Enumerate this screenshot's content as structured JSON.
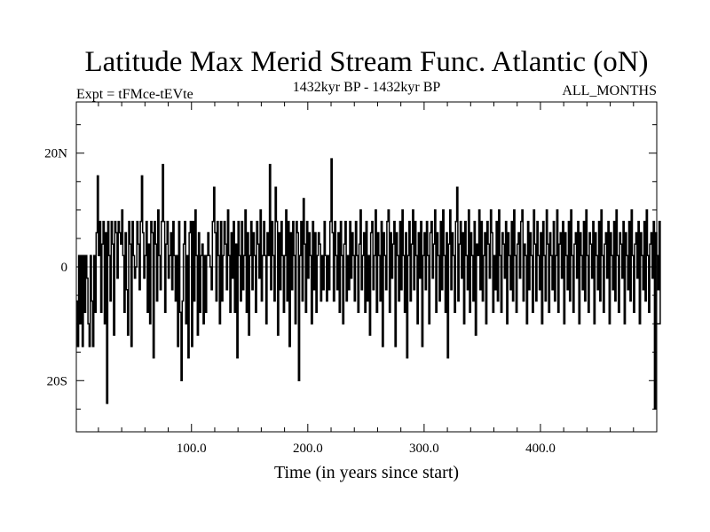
{
  "chart_data": {
    "type": "line",
    "title": "Latitude Max Merid Stream Func. Atlantic (oN)",
    "subtitle_left": "Expt = tFMce-tEVte",
    "subtitle_center": "1432kyr BP - 1432kyr BP",
    "subtitle_right": "ALL_MONTHS",
    "xlabel": "Time (in years since start)",
    "ylabel": "",
    "xlim": [
      1,
      500
    ],
    "ylim": [
      -29,
      29
    ],
    "x_ticks": [
      100,
      200,
      300,
      400
    ],
    "x_tick_labels": [
      "100.0",
      "200.0",
      "300.0",
      "400.0"
    ],
    "y_ticks": [
      -20,
      0,
      20
    ],
    "y_tick_labels": [
      "20S",
      "0",
      "20N"
    ],
    "zero_line": true,
    "grid": false,
    "series": [
      {
        "x_start": 1,
        "x_step": 1,
        "values": [
          -6,
          -14,
          2,
          -10,
          2,
          -14,
          2,
          -8,
          2,
          -2,
          -10,
          -14,
          2,
          -6,
          -14,
          2,
          -8,
          6,
          16,
          2,
          8,
          -8,
          4,
          8,
          -10,
          6,
          -24,
          8,
          2,
          -6,
          8,
          4,
          -12,
          8,
          6,
          -2,
          8,
          6,
          4,
          10,
          2,
          -8,
          6,
          -4,
          -12,
          8,
          4,
          -14,
          8,
          2,
          -2,
          0,
          8,
          4,
          -4,
          8,
          16,
          6,
          -2,
          2,
          8,
          -8,
          4,
          -10,
          8,
          6,
          -16,
          8,
          4,
          -6,
          10,
          2,
          -4,
          8,
          18,
          8,
          -8,
          4,
          8,
          -2,
          2,
          6,
          -4,
          8,
          2,
          -6,
          2,
          -14,
          8,
          -8,
          -20,
          -6,
          4,
          8,
          -10,
          2,
          -16,
          6,
          8,
          -14,
          8,
          -6,
          10,
          2,
          -12,
          6,
          -8,
          2,
          4,
          -10,
          2,
          -8,
          2,
          6,
          2,
          0,
          -4,
          8,
          14,
          6,
          -6,
          8,
          2,
          -10,
          8,
          -6,
          2,
          8,
          4,
          -4,
          10,
          2,
          -8,
          6,
          -2,
          8,
          -8,
          4,
          -16,
          8,
          2,
          -6,
          8,
          -4,
          2,
          10,
          -8,
          6,
          -12,
          2,
          8,
          -4,
          6,
          2,
          -8,
          8,
          4,
          -2,
          10,
          -6,
          2,
          8,
          2,
          -10,
          6,
          2,
          18,
          -4,
          8,
          2,
          -6,
          14,
          8,
          -12,
          6,
          -4,
          8,
          2,
          -8,
          2,
          10,
          -6,
          8,
          -14,
          6,
          -4,
          8,
          2,
          -10,
          8,
          6,
          -20,
          2,
          8,
          -6,
          12,
          4,
          -8,
          8,
          -2,
          6,
          2,
          -10,
          8,
          -4,
          6,
          -8,
          2,
          6,
          4,
          -6,
          2,
          -4,
          8,
          2,
          -6,
          2,
          -4,
          8,
          19,
          6,
          -6,
          8,
          2,
          -4,
          6,
          -8,
          8,
          2,
          -10,
          4,
          8,
          -6,
          2,
          -4,
          8,
          -2,
          6,
          2,
          -6,
          8,
          2,
          -8,
          4,
          10,
          -4,
          2,
          6,
          -8,
          8,
          -6,
          2,
          -12,
          6,
          8,
          -4,
          2,
          10,
          -8,
          6,
          2,
          -6,
          8,
          -14,
          6,
          2,
          -4,
          8,
          10,
          -8,
          6,
          -2,
          4,
          8,
          -14,
          6,
          2,
          -6,
          8,
          -4,
          10,
          2,
          -8,
          6,
          -16,
          2,
          8,
          -6,
          4,
          10,
          -4,
          8,
          2,
          -10,
          6,
          -2,
          8,
          -14,
          2,
          6,
          -4,
          8,
          2,
          -10,
          6,
          8,
          -2,
          4,
          10,
          -8,
          6,
          2,
          -6,
          8,
          -4,
          10,
          2,
          -8,
          6,
          -16,
          4,
          10,
          -4,
          6,
          2,
          -8,
          8,
          14,
          -6,
          4,
          8,
          -2,
          6,
          -10,
          8,
          2,
          -4,
          10,
          -8,
          6,
          2,
          -6,
          8,
          -12,
          4,
          2,
          10,
          -4,
          8,
          -6,
          2,
          6,
          -10,
          8,
          4,
          -2,
          10,
          6,
          -8,
          2,
          -4,
          8,
          -6,
          10,
          2,
          -8,
          6,
          4,
          -2,
          8,
          -10,
          6,
          2,
          -4,
          8,
          -6,
          10,
          2,
          -8,
          4,
          6,
          -2,
          8,
          10,
          -6,
          4,
          2,
          -10,
          8,
          -4,
          6,
          2,
          -8,
          10,
          4,
          -6,
          8,
          2,
          -4,
          6,
          -10,
          8,
          2,
          -6,
          10,
          4,
          -8,
          6,
          2,
          -4,
          8,
          -6,
          2,
          10,
          -8,
          4,
          6,
          -2,
          8,
          -10,
          6,
          2,
          -4,
          8,
          -6,
          10,
          2,
          -8,
          4,
          6,
          -2,
          8,
          -10,
          6,
          2,
          -4,
          8,
          -6,
          10,
          2,
          -8,
          6,
          4,
          -2,
          8,
          -10,
          6,
          2,
          -4,
          8,
          -6,
          10,
          2,
          -8,
          4,
          6,
          -2,
          8,
          -10,
          6,
          2,
          -4,
          8,
          -6,
          10,
          2,
          -8,
          6,
          4,
          -2,
          8,
          -10,
          6,
          2,
          -4,
          8,
          -6,
          10,
          2,
          -8,
          4,
          6,
          -2,
          8,
          -10,
          6,
          2,
          -4,
          8,
          -6,
          10,
          2,
          -8,
          4,
          6,
          -2,
          8,
          -25,
          6,
          2,
          -4,
          8,
          -10
        ]
      }
    ]
  }
}
